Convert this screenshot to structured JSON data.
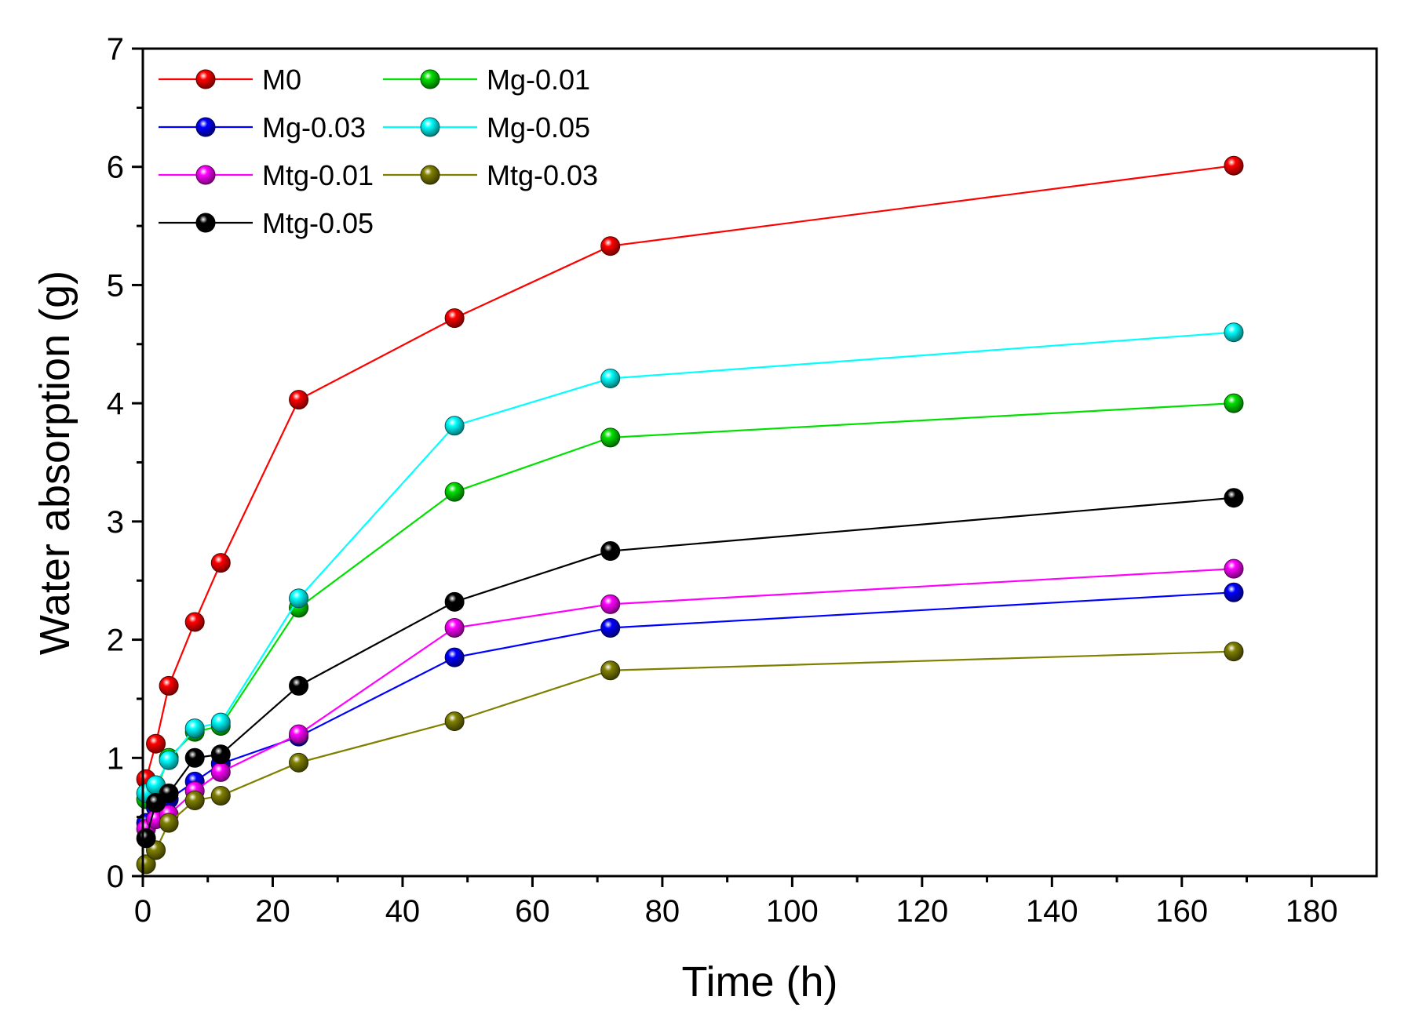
{
  "chart_data": {
    "type": "line",
    "title": "",
    "xlabel": "Time (h)",
    "ylabel": "Water absorption (g)",
    "xlim": [
      0,
      190
    ],
    "ylim": [
      0,
      7
    ],
    "xticks": [
      0,
      20,
      40,
      60,
      80,
      100,
      120,
      140,
      160,
      180
    ],
    "yticks": [
      0,
      1,
      2,
      3,
      4,
      5,
      6,
      7
    ],
    "x": [
      0.5,
      2,
      4,
      8,
      12,
      24,
      48,
      72,
      168
    ],
    "legend_position": "top-left",
    "series": [
      {
        "name": "M0",
        "color": "#ff0000",
        "values": [
          0.82,
          1.12,
          1.61,
          2.15,
          2.65,
          4.03,
          4.72,
          5.33,
          6.01
        ]
      },
      {
        "name": "Mg-0.01",
        "color": "#00e000",
        "values": [
          0.65,
          0.73,
          1.0,
          1.22,
          1.27,
          2.27,
          3.25,
          3.71,
          4.0
        ]
      },
      {
        "name": "Mg-0.03",
        "color": "#0000ff",
        "values": [
          0.45,
          0.58,
          0.65,
          0.8,
          0.95,
          1.18,
          1.85,
          2.1,
          2.4
        ]
      },
      {
        "name": "Mg-0.05",
        "color": "#00ffff",
        "values": [
          0.7,
          0.77,
          0.98,
          1.25,
          1.3,
          2.35,
          3.81,
          4.21,
          4.6
        ]
      },
      {
        "name": "Mtg-0.01",
        "color": "#ff00ff",
        "values": [
          0.4,
          0.48,
          0.52,
          0.72,
          0.88,
          1.2,
          2.1,
          2.3,
          2.6
        ]
      },
      {
        "name": "Mtg-0.03",
        "color": "#808000",
        "values": [
          0.1,
          0.22,
          0.45,
          0.64,
          0.68,
          0.96,
          1.31,
          1.74,
          1.9
        ]
      },
      {
        "name": "Mtg-0.05",
        "color": "#000000",
        "values": [
          0.32,
          0.62,
          0.7,
          1.0,
          1.03,
          1.61,
          2.32,
          2.75,
          3.2
        ]
      }
    ]
  }
}
